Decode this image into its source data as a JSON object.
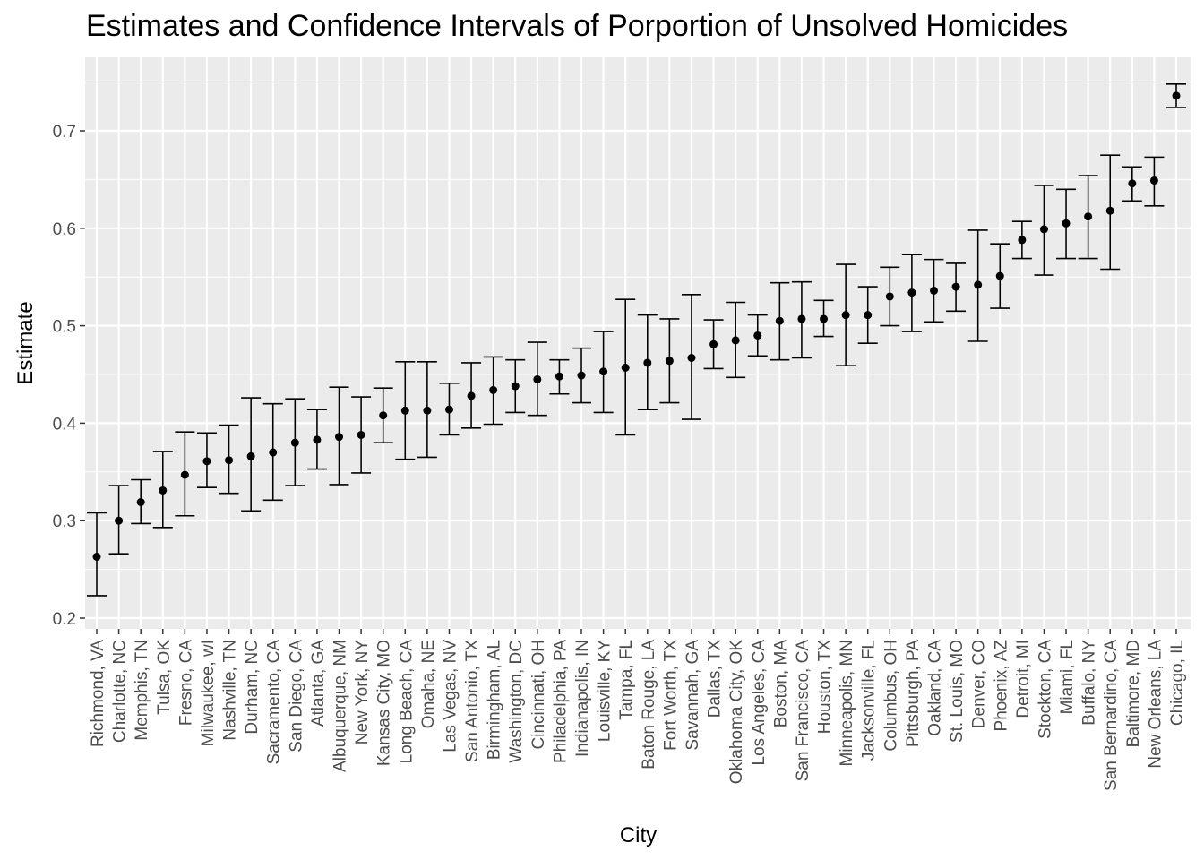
{
  "chart_data": {
    "type": "scatter",
    "title": "Estimates and Confidence Intervals of Porportion of Unsolved Homicides",
    "xlabel": "City",
    "ylabel": "Estimate",
    "ylim": [
      0.2,
      0.75
    ],
    "yticks": [
      0.2,
      0.3,
      0.4,
      0.5,
      0.6,
      0.7
    ],
    "ytick_labels": [
      "0.2",
      "0.3",
      "0.4",
      "0.5",
      "0.6",
      "0.7"
    ],
    "grid": true,
    "error_bars": true,
    "colors": {
      "panel": "#ebebeb",
      "grid": "#ffffff",
      "point": "#000000"
    },
    "categories": [
      "Richmond, VA",
      "Charlotte, NC",
      "Memphis, TN",
      "Tulsa, OK",
      "Fresno, CA",
      "Milwaukee, wI",
      "Nashville, TN",
      "Durham, NC",
      "Sacramento, CA",
      "San Diego, CA",
      "Atlanta, GA",
      "Albuquerque, NM",
      "New York, NY",
      "Kansas City, MO",
      "Long Beach, CA",
      "Omaha, NE",
      "Las Vegas, NV",
      "San Antonio, TX",
      "Birmingham, AL",
      "Washington, DC",
      "Cincinnati, OH",
      "Philadelphia, PA",
      "Indianapolis, IN",
      "Louisville, KY",
      "Tampa, FL",
      "Baton Rouge, LA",
      "Fort Worth, TX",
      "Savannah, GA",
      "Dallas, TX",
      "Oklahoma City, OK",
      "Los Angeles, CA",
      "Boston, MA",
      "San Francisco, CA",
      "Houston, TX",
      "Minneapolis, MN",
      "Jacksonville, FL",
      "Columbus, OH",
      "Pittsburgh, PA",
      "Oakland, CA",
      "St. Louis, MO",
      "Denver, CO",
      "Phoenix, AZ",
      "Detroit, MI",
      "Stockton, CA",
      "Miami, FL",
      "Buffalo, NY",
      "San Bernardino, CA",
      "Baltimore, MD",
      "New Orleans, LA",
      "Chicago, IL"
    ],
    "estimate": [
      0.263,
      0.3,
      0.319,
      0.331,
      0.347,
      0.361,
      0.362,
      0.366,
      0.37,
      0.38,
      0.383,
      0.386,
      0.388,
      0.408,
      0.413,
      0.413,
      0.414,
      0.428,
      0.434,
      0.438,
      0.445,
      0.448,
      0.449,
      0.453,
      0.457,
      0.462,
      0.464,
      0.467,
      0.481,
      0.485,
      0.49,
      0.505,
      0.507,
      0.507,
      0.511,
      0.511,
      0.53,
      0.534,
      0.536,
      0.54,
      0.542,
      0.551,
      0.588,
      0.599,
      0.605,
      0.612,
      0.618,
      0.646,
      0.649,
      0.736
    ],
    "conf_low": [
      0.223,
      0.266,
      0.297,
      0.293,
      0.305,
      0.334,
      0.328,
      0.31,
      0.321,
      0.336,
      0.353,
      0.337,
      0.349,
      0.38,
      0.363,
      0.365,
      0.388,
      0.395,
      0.399,
      0.411,
      0.408,
      0.43,
      0.421,
      0.411,
      0.388,
      0.414,
      0.421,
      0.404,
      0.456,
      0.447,
      0.469,
      0.465,
      0.467,
      0.489,
      0.459,
      0.482,
      0.5,
      0.494,
      0.504,
      0.515,
      0.484,
      0.518,
      0.569,
      0.552,
      0.569,
      0.569,
      0.558,
      0.628,
      0.623,
      0.724
    ],
    "conf_high": [
      0.308,
      0.336,
      0.342,
      0.371,
      0.391,
      0.39,
      0.398,
      0.426,
      0.42,
      0.425,
      0.414,
      0.437,
      0.427,
      0.436,
      0.463,
      0.463,
      0.441,
      0.462,
      0.468,
      0.465,
      0.483,
      0.465,
      0.477,
      0.494,
      0.527,
      0.511,
      0.507,
      0.532,
      0.506,
      0.524,
      0.511,
      0.544,
      0.545,
      0.526,
      0.563,
      0.54,
      0.56,
      0.573,
      0.568,
      0.564,
      0.598,
      0.584,
      0.607,
      0.644,
      0.64,
      0.654,
      0.675,
      0.663,
      0.673,
      0.748
    ]
  }
}
